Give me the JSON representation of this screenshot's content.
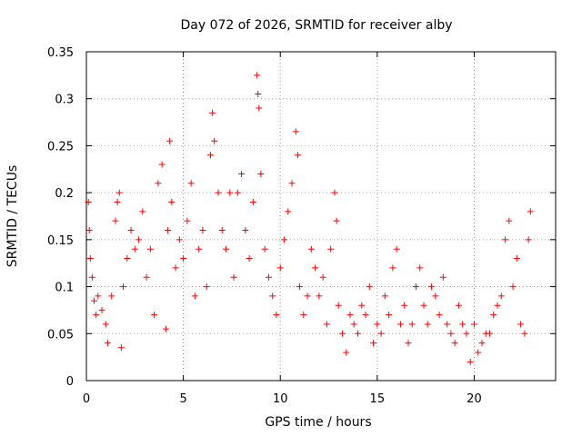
{
  "chart_data": {
    "type": "scatter",
    "title": "Day 072 of 2026, SRMTID for receiver alby",
    "xlabel": "GPS time / hours",
    "ylabel": "SRMTID / TECUs",
    "xlim": [
      0,
      24.2
    ],
    "ylim": [
      0,
      0.35
    ],
    "xticks": [
      0,
      5,
      10,
      15,
      20
    ],
    "xtick_labels": [
      "0",
      "5",
      "10",
      "15",
      "20"
    ],
    "yticks": [
      0,
      0.05,
      0.1,
      0.15,
      0.2,
      0.25,
      0.3,
      0.35
    ],
    "ytick_labels": [
      "0",
      "0.05",
      "0.1",
      "0.15",
      "0.2",
      "0.25",
      "0.3",
      "0.35"
    ],
    "grid": true,
    "marker": "plus",
    "color": "#ff0000",
    "series": [
      {
        "name": "SRMTID",
        "points": [
          [
            0.1,
            0.19
          ],
          [
            0.15,
            0.16
          ],
          [
            0.2,
            0.13
          ],
          [
            0.3,
            0.11
          ],
          [
            0.4,
            0.085
          ],
          [
            0.5,
            0.07
          ],
          [
            0.6,
            0.09
          ],
          [
            0.8,
            0.075
          ],
          [
            1.0,
            0.06
          ],
          [
            1.1,
            0.04
          ],
          [
            1.3,
            0.09
          ],
          [
            1.5,
            0.17
          ],
          [
            1.6,
            0.19
          ],
          [
            1.7,
            0.2
          ],
          [
            1.8,
            0.035
          ],
          [
            1.9,
            0.1
          ],
          [
            2.1,
            0.13
          ],
          [
            2.3,
            0.16
          ],
          [
            2.5,
            0.14
          ],
          [
            2.7,
            0.15
          ],
          [
            2.9,
            0.18
          ],
          [
            3.1,
            0.11
          ],
          [
            3.3,
            0.14
          ],
          [
            3.5,
            0.07
          ],
          [
            3.7,
            0.21
          ],
          [
            3.9,
            0.23
          ],
          [
            4.1,
            0.055
          ],
          [
            4.2,
            0.16
          ],
          [
            4.3,
            0.255
          ],
          [
            4.4,
            0.19
          ],
          [
            4.6,
            0.12
          ],
          [
            4.8,
            0.15
          ],
          [
            5.0,
            0.13
          ],
          [
            5.2,
            0.17
          ],
          [
            5.4,
            0.21
          ],
          [
            5.6,
            0.09
          ],
          [
            5.8,
            0.14
          ],
          [
            6.0,
            0.16
          ],
          [
            6.2,
            0.1
          ],
          [
            6.4,
            0.24
          ],
          [
            6.5,
            0.285
          ],
          [
            6.6,
            0.255
          ],
          [
            6.8,
            0.2
          ],
          [
            7.0,
            0.16
          ],
          [
            7.2,
            0.14
          ],
          [
            7.4,
            0.2
          ],
          [
            7.6,
            0.11
          ],
          [
            7.8,
            0.2
          ],
          [
            8.0,
            0.22
          ],
          [
            8.2,
            0.16
          ],
          [
            8.4,
            0.13
          ],
          [
            8.6,
            0.19
          ],
          [
            8.8,
            0.325
          ],
          [
            8.85,
            0.305
          ],
          [
            8.9,
            0.29
          ],
          [
            9.0,
            0.22
          ],
          [
            9.2,
            0.14
          ],
          [
            9.4,
            0.11
          ],
          [
            9.6,
            0.09
          ],
          [
            9.8,
            0.07
          ],
          [
            10.0,
            0.12
          ],
          [
            10.2,
            0.15
          ],
          [
            10.4,
            0.18
          ],
          [
            10.6,
            0.21
          ],
          [
            10.8,
            0.265
          ],
          [
            10.9,
            0.24
          ],
          [
            11.0,
            0.1
          ],
          [
            11.2,
            0.07
          ],
          [
            11.4,
            0.09
          ],
          [
            11.6,
            0.14
          ],
          [
            11.8,
            0.12
          ],
          [
            12.0,
            0.09
          ],
          [
            12.2,
            0.11
          ],
          [
            12.4,
            0.06
          ],
          [
            12.6,
            0.14
          ],
          [
            12.8,
            0.2
          ],
          [
            12.9,
            0.17
          ],
          [
            13.0,
            0.08
          ],
          [
            13.2,
            0.05
          ],
          [
            13.4,
            0.03
          ],
          [
            13.6,
            0.07
          ],
          [
            13.8,
            0.06
          ],
          [
            14.0,
            0.05
          ],
          [
            14.2,
            0.08
          ],
          [
            14.4,
            0.07
          ],
          [
            14.6,
            0.1
          ],
          [
            14.8,
            0.04
          ],
          [
            15.0,
            0.06
          ],
          [
            15.2,
            0.05
          ],
          [
            15.4,
            0.09
          ],
          [
            15.6,
            0.07
          ],
          [
            15.8,
            0.12
          ],
          [
            16.0,
            0.14
          ],
          [
            16.2,
            0.06
          ],
          [
            16.4,
            0.08
          ],
          [
            16.6,
            0.04
          ],
          [
            16.8,
            0.06
          ],
          [
            17.0,
            0.1
          ],
          [
            17.2,
            0.12
          ],
          [
            17.4,
            0.08
          ],
          [
            17.6,
            0.06
          ],
          [
            17.8,
            0.1
          ],
          [
            18.0,
            0.09
          ],
          [
            18.2,
            0.07
          ],
          [
            18.4,
            0.11
          ],
          [
            18.6,
            0.06
          ],
          [
            18.8,
            0.05
          ],
          [
            19.0,
            0.04
          ],
          [
            19.2,
            0.08
          ],
          [
            19.4,
            0.06
          ],
          [
            19.6,
            0.05
          ],
          [
            19.8,
            0.02
          ],
          [
            20.0,
            0.06
          ],
          [
            20.2,
            0.03
          ],
          [
            20.4,
            0.04
          ],
          [
            20.6,
            0.05
          ],
          [
            20.8,
            0.05
          ],
          [
            21.0,
            0.07
          ],
          [
            21.2,
            0.08
          ],
          [
            21.4,
            0.09
          ],
          [
            21.6,
            0.15
          ],
          [
            21.8,
            0.17
          ],
          [
            22.0,
            0.1
          ],
          [
            22.2,
            0.13
          ],
          [
            22.4,
            0.06
          ],
          [
            22.6,
            0.05
          ],
          [
            22.8,
            0.15
          ],
          [
            22.9,
            0.18
          ]
        ]
      }
    ]
  }
}
